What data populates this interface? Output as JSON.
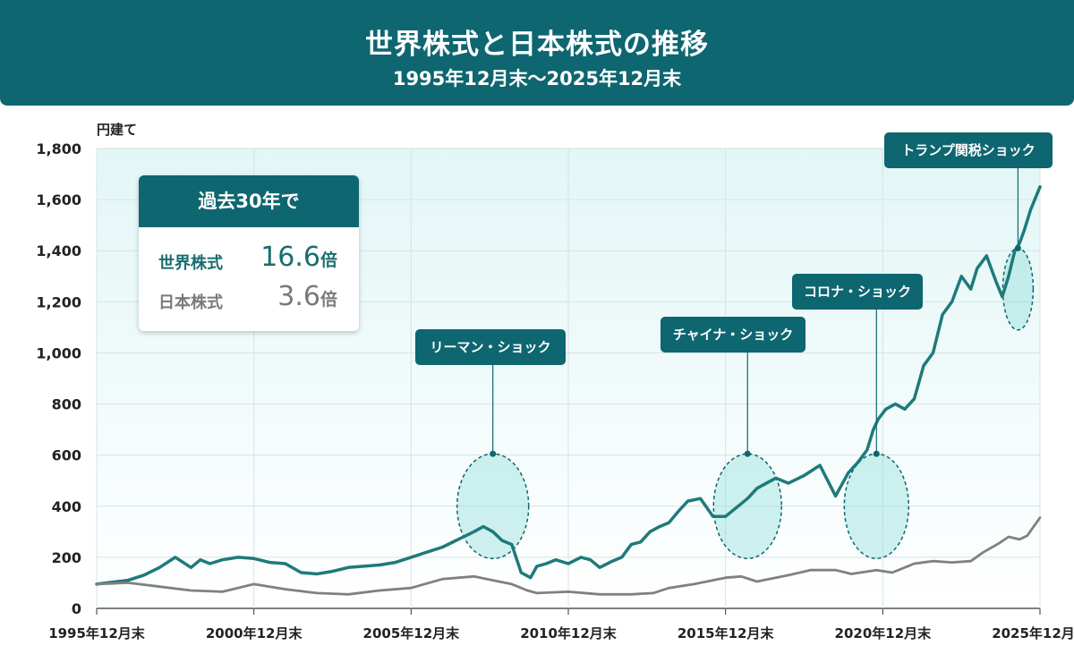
{
  "header": {
    "title": "世界株式と日本株式の推移",
    "subtitle": "1995年12月末〜2025年12月末"
  },
  "summary": {
    "heading": "過去30年で",
    "rows": [
      {
        "label": "世界株式",
        "value": "16.6",
        "unit": "倍",
        "color": "#1a6d6f"
      },
      {
        "label": "日本株式",
        "value": "3.6",
        "unit": "倍",
        "color": "#7a7a7a"
      }
    ]
  },
  "callouts": [
    {
      "label": "リーマン・ショック",
      "year": 2007.6
    },
    {
      "label": "チャイナ・ショック",
      "year": 2015.7
    },
    {
      "label": "コロナ・ショック",
      "year": 2019.8
    },
    {
      "label": "トランプ関税ショック",
      "year": 2024.3
    }
  ],
  "chart_data": {
    "type": "line",
    "ylabel": "円建て",
    "ylim": [
      0,
      1800
    ],
    "yticks": [
      0,
      200,
      400,
      600,
      800,
      1000,
      1200,
      1400,
      1600,
      1800
    ],
    "xticks": [
      "1995年12月末",
      "2000年12月末",
      "2005年12月末",
      "2010年12月末",
      "2015年12月末",
      "2020年12月末",
      "2025年12月末"
    ],
    "xrange": [
      1995,
      2025
    ],
    "grid": true,
    "colors": {
      "world": "#1f7a7a",
      "japan": "#808080",
      "highlight": "#0e6670"
    },
    "series": [
      {
        "name": "世界株式",
        "x": [
          1995.0,
          1996.0,
          1996.5,
          1997.0,
          1997.5,
          1998.0,
          1998.3,
          1998.6,
          1999.0,
          1999.5,
          2000.0,
          2000.5,
          2001.0,
          2001.5,
          2002.0,
          2002.5,
          2003.0,
          2003.5,
          2004.0,
          2004.5,
          2005.0,
          2005.5,
          2006.0,
          2006.5,
          2007.0,
          2007.3,
          2007.6,
          2007.9,
          2008.2,
          2008.5,
          2008.8,
          2009.0,
          2009.3,
          2009.6,
          2010.0,
          2010.4,
          2010.7,
          2011.0,
          2011.4,
          2011.7,
          2012.0,
          2012.3,
          2012.6,
          2012.9,
          2013.2,
          2013.5,
          2013.8,
          2014.2,
          2014.6,
          2015.0,
          2015.4,
          2015.7,
          2016.0,
          2016.3,
          2016.6,
          2017.0,
          2017.5,
          2018.0,
          2018.5,
          2018.9,
          2019.2,
          2019.5,
          2019.7,
          2019.85,
          2020.1,
          2020.4,
          2020.7,
          2021.0,
          2021.3,
          2021.6,
          2021.9,
          2022.2,
          2022.5,
          2022.8,
          2023.0,
          2023.3,
          2023.6,
          2023.8,
          2024.0,
          2024.2,
          2024.35,
          2024.5,
          2024.7,
          2024.9,
          2025.0
        ],
        "values": [
          95,
          110,
          130,
          160,
          200,
          160,
          190,
          175,
          190,
          200,
          195,
          180,
          175,
          140,
          135,
          145,
          160,
          165,
          170,
          180,
          200,
          220,
          240,
          270,
          300,
          320,
          300,
          265,
          250,
          140,
          120,
          165,
          175,
          190,
          175,
          200,
          190,
          160,
          185,
          200,
          250,
          260,
          300,
          320,
          335,
          380,
          420,
          430,
          360,
          360,
          400,
          430,
          470,
          490,
          510,
          490,
          520,
          560,
          440,
          530,
          570,
          620,
          700,
          740,
          780,
          800,
          780,
          820,
          950,
          1000,
          1150,
          1200,
          1300,
          1250,
          1330,
          1380,
          1280,
          1220,
          1300,
          1400,
          1430,
          1480,
          1560,
          1620,
          1650
        ]
      },
      {
        "name": "日本株式",
        "x": [
          1995.0,
          1996.0,
          1997.0,
          1998.0,
          1999.0,
          2000.0,
          2001.0,
          2002.0,
          2003.0,
          2004.0,
          2005.0,
          2006.0,
          2007.0,
          2007.6,
          2008.2,
          2008.7,
          2009.0,
          2010.0,
          2011.0,
          2012.0,
          2012.7,
          2013.2,
          2014.0,
          2015.0,
          2015.5,
          2016.0,
          2017.0,
          2017.7,
          2018.5,
          2019.0,
          2019.8,
          2020.3,
          2021.0,
          2021.6,
          2022.2,
          2022.8,
          2023.2,
          2023.7,
          2024.0,
          2024.35,
          2024.6,
          2025.0
        ],
        "values": [
          95,
          100,
          85,
          70,
          65,
          95,
          75,
          60,
          55,
          70,
          80,
          115,
          125,
          110,
          95,
          70,
          60,
          65,
          55,
          55,
          60,
          80,
          95,
          120,
          125,
          105,
          130,
          150,
          150,
          135,
          150,
          140,
          175,
          185,
          180,
          185,
          220,
          255,
          280,
          270,
          285,
          355
        ]
      }
    ]
  }
}
